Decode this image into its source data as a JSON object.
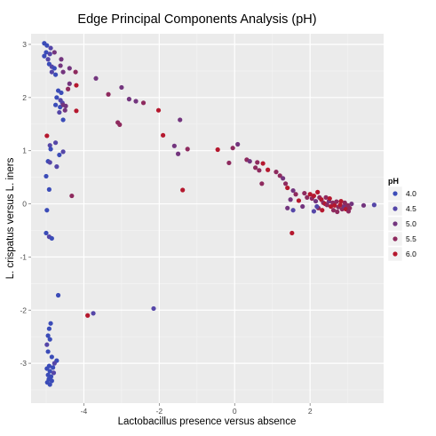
{
  "chart_data": {
    "type": "scatter",
    "title": "Edge Principal Components Analysis (pH)",
    "xlabel": "Lactobacillus presence versus absence",
    "ylabel": "L. crispatus versus L. iners",
    "xlim": [
      -5.4,
      3.95
    ],
    "ylim": [
      -3.75,
      3.2
    ],
    "x_ticks": [
      -4,
      -2,
      0,
      2
    ],
    "y_ticks": [
      -3,
      -2,
      -1,
      0,
      1,
      2,
      3
    ],
    "grid": true,
    "legend": {
      "title": "pH",
      "position": "right",
      "entries": [
        {
          "label": "4.0",
          "value": 4.0,
          "color": "#3b4cb8"
        },
        {
          "label": "4.5",
          "value": 4.5,
          "color": "#5546a8"
        },
        {
          "label": "5.0",
          "value": 5.0,
          "color": "#73357e"
        },
        {
          "label": "5.5",
          "value": 5.5,
          "color": "#8e2a5e"
        },
        {
          "label": "6.0",
          "value": 6.0,
          "color": "#b5182e"
        }
      ]
    },
    "points": [
      {
        "x": -5.05,
        "y": 3.02,
        "ph": 4.0
      },
      {
        "x": -4.98,
        "y": 2.98,
        "ph": 4.0
      },
      {
        "x": -4.88,
        "y": 2.93,
        "ph": 4.5
      },
      {
        "x": -5.0,
        "y": 2.85,
        "ph": 4.0
      },
      {
        "x": -4.9,
        "y": 2.82,
        "ph": 4.5
      },
      {
        "x": -4.78,
        "y": 2.85,
        "ph": 5.0
      },
      {
        "x": -5.05,
        "y": 2.78,
        "ph": 4.0
      },
      {
        "x": -4.95,
        "y": 2.72,
        "ph": 4.5
      },
      {
        "x": -4.6,
        "y": 2.72,
        "ph": 5.0
      },
      {
        "x": -4.92,
        "y": 2.63,
        "ph": 4.0
      },
      {
        "x": -4.85,
        "y": 2.58,
        "ph": 4.5
      },
      {
        "x": -4.78,
        "y": 2.55,
        "ph": 4.0
      },
      {
        "x": -4.62,
        "y": 2.6,
        "ph": 5.0
      },
      {
        "x": -4.38,
        "y": 2.55,
        "ph": 5.0
      },
      {
        "x": -4.85,
        "y": 2.48,
        "ph": 4.5
      },
      {
        "x": -4.75,
        "y": 2.43,
        "ph": 4.0
      },
      {
        "x": -4.55,
        "y": 2.48,
        "ph": 5.0
      },
      {
        "x": -4.22,
        "y": 2.48,
        "ph": 5.5
      },
      {
        "x": -3.68,
        "y": 2.36,
        "ph": 5.0
      },
      {
        "x": -4.38,
        "y": 2.26,
        "ph": 5.0
      },
      {
        "x": -4.2,
        "y": 2.23,
        "ph": 6.0
      },
      {
        "x": -4.42,
        "y": 2.16,
        "ph": 5.5
      },
      {
        "x": -4.68,
        "y": 2.13,
        "ph": 4.0
      },
      {
        "x": -4.6,
        "y": 2.09,
        "ph": 4.0
      },
      {
        "x": -4.72,
        "y": 2.0,
        "ph": 4.0
      },
      {
        "x": -4.62,
        "y": 1.95,
        "ph": 4.5
      },
      {
        "x": -4.57,
        "y": 1.9,
        "ph": 4.5
      },
      {
        "x": -4.75,
        "y": 1.86,
        "ph": 4.0
      },
      {
        "x": -4.63,
        "y": 1.82,
        "ph": 4.0
      },
      {
        "x": -4.55,
        "y": 1.86,
        "ph": 5.0
      },
      {
        "x": -4.48,
        "y": 1.84,
        "ph": 5.0
      },
      {
        "x": -4.5,
        "y": 1.76,
        "ph": 5.0
      },
      {
        "x": -4.65,
        "y": 1.72,
        "ph": 4.5
      },
      {
        "x": -4.2,
        "y": 1.75,
        "ph": 6.0
      },
      {
        "x": -4.55,
        "y": 1.58,
        "ph": 4.0
      },
      {
        "x": -3.35,
        "y": 2.06,
        "ph": 5.5
      },
      {
        "x": -3.0,
        "y": 2.19,
        "ph": 5.0
      },
      {
        "x": -2.8,
        "y": 1.97,
        "ph": 5.0
      },
      {
        "x": -2.62,
        "y": 1.93,
        "ph": 5.0
      },
      {
        "x": -2.42,
        "y": 1.9,
        "ph": 5.5
      },
      {
        "x": -2.02,
        "y": 1.76,
        "ph": 6.0
      },
      {
        "x": -3.1,
        "y": 1.53,
        "ph": 5.5
      },
      {
        "x": -3.05,
        "y": 1.49,
        "ph": 5.5
      },
      {
        "x": -1.45,
        "y": 1.58,
        "ph": 5.0
      },
      {
        "x": -1.9,
        "y": 1.29,
        "ph": 6.0
      },
      {
        "x": -1.25,
        "y": 1.03,
        "ph": 5.5
      },
      {
        "x": -1.6,
        "y": 1.09,
        "ph": 5.0
      },
      {
        "x": -1.5,
        "y": 0.94,
        "ph": 5.0
      },
      {
        "x": -1.38,
        "y": 0.26,
        "ph": 6.0
      },
      {
        "x": -0.45,
        "y": 1.02,
        "ph": 6.0
      },
      {
        "x": -0.05,
        "y": 1.05,
        "ph": 5.5
      },
      {
        "x": 0.08,
        "y": 1.12,
        "ph": 5.0
      },
      {
        "x": -0.15,
        "y": 0.77,
        "ph": 5.5
      },
      {
        "x": 0.32,
        "y": 0.83,
        "ph": 5.5
      },
      {
        "x": 0.4,
        "y": 0.8,
        "ph": 5.0
      },
      {
        "x": 0.6,
        "y": 0.78,
        "ph": 5.5
      },
      {
        "x": 0.75,
        "y": 0.76,
        "ph": 6.0
      },
      {
        "x": 0.55,
        "y": 0.68,
        "ph": 5.5
      },
      {
        "x": 0.65,
        "y": 0.63,
        "ph": 5.5
      },
      {
        "x": 0.88,
        "y": 0.64,
        "ph": 6.0
      },
      {
        "x": 0.72,
        "y": 0.38,
        "ph": 5.5
      },
      {
        "x": 1.1,
        "y": 0.6,
        "ph": 5.5
      },
      {
        "x": 1.2,
        "y": 0.53,
        "ph": 5.5
      },
      {
        "x": 1.28,
        "y": 0.48,
        "ph": 5.0
      },
      {
        "x": 1.35,
        "y": 0.38,
        "ph": 5.5
      },
      {
        "x": 1.4,
        "y": 0.3,
        "ph": 6.0
      },
      {
        "x": 1.55,
        "y": 0.25,
        "ph": 5.0
      },
      {
        "x": 1.62,
        "y": 0.18,
        "ph": 5.5
      },
      {
        "x": 1.48,
        "y": 0.08,
        "ph": 5.0
      },
      {
        "x": 1.7,
        "y": 0.06,
        "ph": 6.0
      },
      {
        "x": 1.85,
        "y": 0.2,
        "ph": 5.5
      },
      {
        "x": 1.92,
        "y": 0.12,
        "ph": 5.5
      },
      {
        "x": 2.0,
        "y": 0.18,
        "ph": 6.0
      },
      {
        "x": 2.05,
        "y": 0.1,
        "ph": 5.5
      },
      {
        "x": 2.1,
        "y": 0.15,
        "ph": 6.0
      },
      {
        "x": 2.15,
        "y": 0.05,
        "ph": 5.0
      },
      {
        "x": 2.2,
        "y": 0.22,
        "ph": 6.0
      },
      {
        "x": 2.25,
        "y": 0.12,
        "ph": 5.5
      },
      {
        "x": 2.3,
        "y": 0.08,
        "ph": 6.0
      },
      {
        "x": 2.35,
        "y": 0.02,
        "ph": 5.5
      },
      {
        "x": 2.4,
        "y": 0.0,
        "ph": 6.0
      },
      {
        "x": 2.45,
        "y": -0.02,
        "ph": 5.5
      },
      {
        "x": 2.5,
        "y": 0.05,
        "ph": 5.0
      },
      {
        "x": 2.55,
        "y": -0.05,
        "ph": 6.0
      },
      {
        "x": 2.6,
        "y": 0.02,
        "ph": 5.5
      },
      {
        "x": 2.65,
        "y": -0.03,
        "ph": 6.0
      },
      {
        "x": 2.7,
        "y": 0.04,
        "ph": 5.5
      },
      {
        "x": 2.75,
        "y": -0.06,
        "ph": 5.5
      },
      {
        "x": 2.8,
        "y": -0.02,
        "ph": 6.0
      },
      {
        "x": 2.85,
        "y": -0.1,
        "ph": 5.5
      },
      {
        "x": 2.9,
        "y": -0.05,
        "ph": 5.0
      },
      {
        "x": 2.95,
        "y": -0.1,
        "ph": 6.0
      },
      {
        "x": 3.0,
        "y": -0.03,
        "ph": 5.5
      },
      {
        "x": 3.05,
        "y": -0.08,
        "ph": 5.5
      },
      {
        "x": 3.1,
        "y": 0.0,
        "ph": 5.0
      },
      {
        "x": 2.22,
        "y": -0.08,
        "ph": 5.5
      },
      {
        "x": 2.32,
        "y": -0.12,
        "ph": 6.0
      },
      {
        "x": 2.42,
        "y": 0.12,
        "ph": 5.5
      },
      {
        "x": 2.52,
        "y": 0.1,
        "ph": 6.0
      },
      {
        "x": 2.62,
        "y": -0.12,
        "ph": 5.5
      },
      {
        "x": 2.72,
        "y": -0.15,
        "ph": 5.5
      },
      {
        "x": 2.82,
        "y": 0.05,
        "ph": 6.0
      },
      {
        "x": 2.92,
        "y": 0.02,
        "ph": 5.5
      },
      {
        "x": 3.02,
        "y": -0.14,
        "ph": 5.5
      },
      {
        "x": 2.18,
        "y": -0.05,
        "ph": 4.5
      },
      {
        "x": 2.1,
        "y": -0.14,
        "ph": 4.5
      },
      {
        "x": 3.42,
        "y": -0.03,
        "ph": 5.0
      },
      {
        "x": 3.7,
        "y": -0.02,
        "ph": 4.5
      },
      {
        "x": 1.8,
        "y": -0.05,
        "ph": 5.0
      },
      {
        "x": 1.55,
        "y": -0.12,
        "ph": 4.5
      },
      {
        "x": 1.4,
        "y": -0.08,
        "ph": 5.0
      },
      {
        "x": 1.52,
        "y": -0.55,
        "ph": 6.0
      },
      {
        "x": -4.98,
        "y": 1.28,
        "ph": 6.0
      },
      {
        "x": -4.9,
        "y": 1.1,
        "ph": 4.5
      },
      {
        "x": -4.88,
        "y": 1.03,
        "ph": 4.0
      },
      {
        "x": -4.75,
        "y": 1.15,
        "ph": 4.5
      },
      {
        "x": -4.65,
        "y": 0.92,
        "ph": 4.0
      },
      {
        "x": -4.55,
        "y": 0.98,
        "ph": 4.5
      },
      {
        "x": -4.95,
        "y": 0.8,
        "ph": 4.0
      },
      {
        "x": -4.9,
        "y": 0.78,
        "ph": 4.5
      },
      {
        "x": -4.72,
        "y": 0.7,
        "ph": 4.5
      },
      {
        "x": -5.0,
        "y": 0.52,
        "ph": 4.0
      },
      {
        "x": -4.92,
        "y": 0.27,
        "ph": 4.0
      },
      {
        "x": -4.32,
        "y": 0.15,
        "ph": 5.5
      },
      {
        "x": -4.98,
        "y": -0.12,
        "ph": 4.0
      },
      {
        "x": -5.0,
        "y": -0.55,
        "ph": 4.0
      },
      {
        "x": -4.92,
        "y": -0.62,
        "ph": 4.5
      },
      {
        "x": -4.85,
        "y": -0.65,
        "ph": 4.0
      },
      {
        "x": -4.68,
        "y": -1.72,
        "ph": 4.0
      },
      {
        "x": -3.9,
        "y": -2.1,
        "ph": 6.0
      },
      {
        "x": -3.75,
        "y": -2.06,
        "ph": 4.5
      },
      {
        "x": -2.15,
        "y": -1.97,
        "ph": 4.5
      },
      {
        "x": -4.88,
        "y": -2.25,
        "ph": 4.0
      },
      {
        "x": -4.92,
        "y": -2.35,
        "ph": 4.0
      },
      {
        "x": -4.95,
        "y": -2.48,
        "ph": 4.0
      },
      {
        "x": -4.9,
        "y": -2.55,
        "ph": 4.0
      },
      {
        "x": -4.98,
        "y": -2.65,
        "ph": 4.5
      },
      {
        "x": -4.95,
        "y": -2.78,
        "ph": 4.0
      },
      {
        "x": -4.85,
        "y": -2.88,
        "ph": 4.0
      },
      {
        "x": -4.72,
        "y": -2.95,
        "ph": 4.0
      },
      {
        "x": -4.78,
        "y": -3.0,
        "ph": 4.5
      },
      {
        "x": -4.92,
        "y": -3.05,
        "ph": 4.0
      },
      {
        "x": -4.82,
        "y": -3.08,
        "ph": 4.0
      },
      {
        "x": -4.98,
        "y": -3.1,
        "ph": 4.0
      },
      {
        "x": -4.9,
        "y": -3.15,
        "ph": 4.0
      },
      {
        "x": -4.8,
        "y": -3.18,
        "ph": 4.5
      },
      {
        "x": -4.95,
        "y": -3.22,
        "ph": 4.0
      },
      {
        "x": -4.87,
        "y": -3.25,
        "ph": 4.0
      },
      {
        "x": -4.93,
        "y": -3.3,
        "ph": 4.0
      },
      {
        "x": -4.85,
        "y": -3.33,
        "ph": 4.0
      },
      {
        "x": -4.97,
        "y": -3.36,
        "ph": 4.0
      },
      {
        "x": -4.9,
        "y": -3.4,
        "ph": 4.0
      }
    ]
  }
}
